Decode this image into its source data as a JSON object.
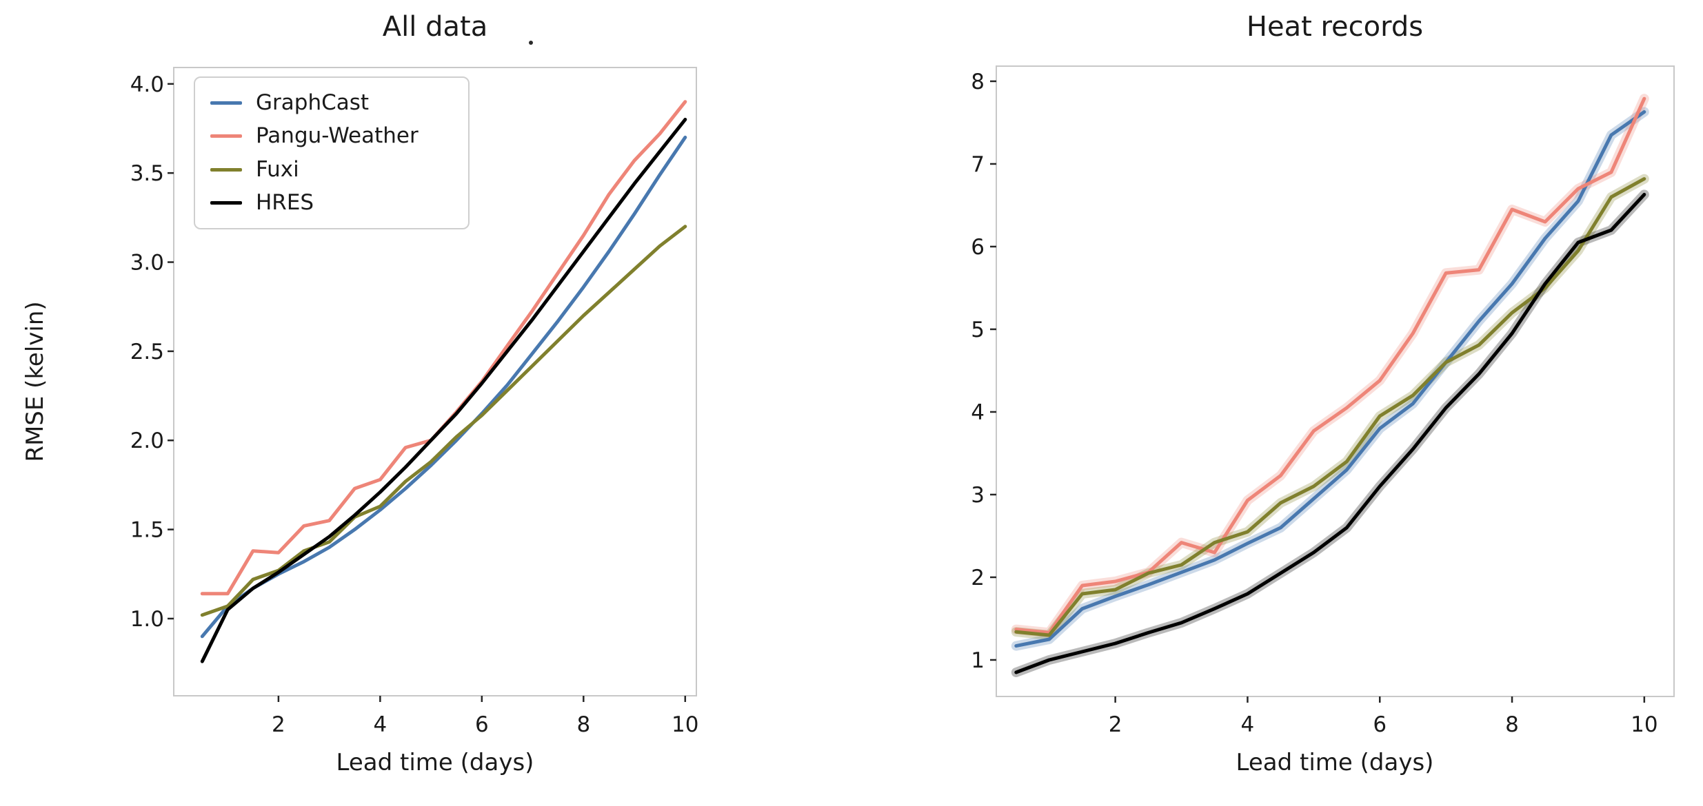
{
  "figure": {
    "background": "#ffffff",
    "panel_titles": [
      "All data",
      "Heat records"
    ]
  },
  "chart_data": [
    {
      "type": "line",
      "title": "All data",
      "xlabel": "Lead time (days)",
      "ylabel": "RMSE (kelvin)",
      "x": [
        0.5,
        1,
        1.5,
        2,
        2.5,
        3,
        3.5,
        4,
        4.5,
        5,
        5.5,
        6,
        6.5,
        7,
        7.5,
        8,
        8.5,
        9,
        9.5,
        10
      ],
      "xticks": [
        2,
        4,
        6,
        8,
        10
      ],
      "yticks": [
        1.0,
        1.5,
        2.0,
        2.5,
        3.0,
        3.5,
        4.0
      ],
      "ytick_decimals": 1,
      "xlim": [
        -0.06,
        10.22
      ],
      "ylim": [
        0.567,
        4.092
      ],
      "grid": false,
      "legend_position": "upper left",
      "uncertainty_band": false,
      "series": [
        {
          "name": "GraphCast",
          "color": "#4878af",
          "values": [
            0.9,
            1.07,
            1.17,
            1.25,
            1.32,
            1.4,
            1.5,
            1.61,
            1.73,
            1.86,
            2.0,
            2.15,
            2.31,
            2.49,
            2.67,
            2.86,
            3.06,
            3.27,
            3.49,
            3.7
          ]
        },
        {
          "name": "Pangu-Weather",
          "color": "#ee8578",
          "values": [
            1.14,
            1.14,
            1.38,
            1.37,
            1.52,
            1.55,
            1.73,
            1.78,
            1.96,
            2.0,
            2.16,
            2.33,
            2.53,
            2.73,
            2.94,
            3.15,
            3.38,
            3.57,
            3.72,
            3.9
          ]
        },
        {
          "name": "Fuxi",
          "color": "#80802d",
          "values": [
            1.02,
            1.07,
            1.22,
            1.27,
            1.38,
            1.43,
            1.57,
            1.63,
            1.77,
            1.88,
            2.02,
            2.14,
            2.28,
            2.42,
            2.56,
            2.7,
            2.83,
            2.96,
            3.09,
            3.2
          ]
        },
        {
          "name": "HRES",
          "color": "#000000",
          "values": [
            0.76,
            1.05,
            1.17,
            1.26,
            1.36,
            1.46,
            1.58,
            1.71,
            1.85,
            2.0,
            2.15,
            2.32,
            2.5,
            2.68,
            2.87,
            3.06,
            3.25,
            3.44,
            3.62,
            3.8
          ]
        }
      ]
    },
    {
      "type": "line",
      "title": "Heat records",
      "xlabel": "Lead time (days)",
      "ylabel": "",
      "x": [
        0.5,
        1,
        1.5,
        2,
        2.5,
        3,
        3.5,
        4,
        4.5,
        5,
        5.5,
        6,
        6.5,
        7,
        7.5,
        8,
        8.5,
        9,
        9.5,
        10
      ],
      "xticks": [
        2,
        4,
        6,
        8,
        10
      ],
      "yticks": [
        1,
        2,
        3,
        4,
        5,
        6,
        7,
        8
      ],
      "ytick_decimals": 0,
      "xlim": [
        0.2,
        10.45
      ],
      "ylim": [
        0.558,
        8.183
      ],
      "grid": false,
      "legend_position": "none",
      "uncertainty_band": true,
      "series": [
        {
          "name": "GraphCast",
          "color": "#4878af",
          "values": [
            1.17,
            1.25,
            1.62,
            1.77,
            1.91,
            2.06,
            2.21,
            2.41,
            2.6,
            2.95,
            3.3,
            3.8,
            4.1,
            4.6,
            5.1,
            5.55,
            6.1,
            6.55,
            7.35,
            7.63
          ]
        },
        {
          "name": "Pangu-Weather",
          "color": "#ee8578",
          "values": [
            1.37,
            1.33,
            1.9,
            1.95,
            2.06,
            2.42,
            2.3,
            2.93,
            3.23,
            3.77,
            4.05,
            4.38,
            4.95,
            5.68,
            5.72,
            6.45,
            6.3,
            6.7,
            6.9,
            7.79
          ]
        },
        {
          "name": "Fuxi",
          "color": "#80802d",
          "values": [
            1.34,
            1.3,
            1.8,
            1.85,
            2.05,
            2.15,
            2.42,
            2.55,
            2.9,
            3.1,
            3.4,
            3.95,
            4.2,
            4.6,
            4.81,
            5.2,
            5.5,
            5.95,
            6.6,
            6.82
          ]
        },
        {
          "name": "HRES",
          "color": "#000000",
          "values": [
            0.85,
            1.0,
            1.1,
            1.2,
            1.33,
            1.45,
            1.62,
            1.8,
            2.05,
            2.3,
            2.6,
            3.1,
            3.55,
            4.05,
            4.46,
            4.95,
            5.55,
            6.05,
            6.2,
            6.63
          ]
        }
      ]
    }
  ]
}
